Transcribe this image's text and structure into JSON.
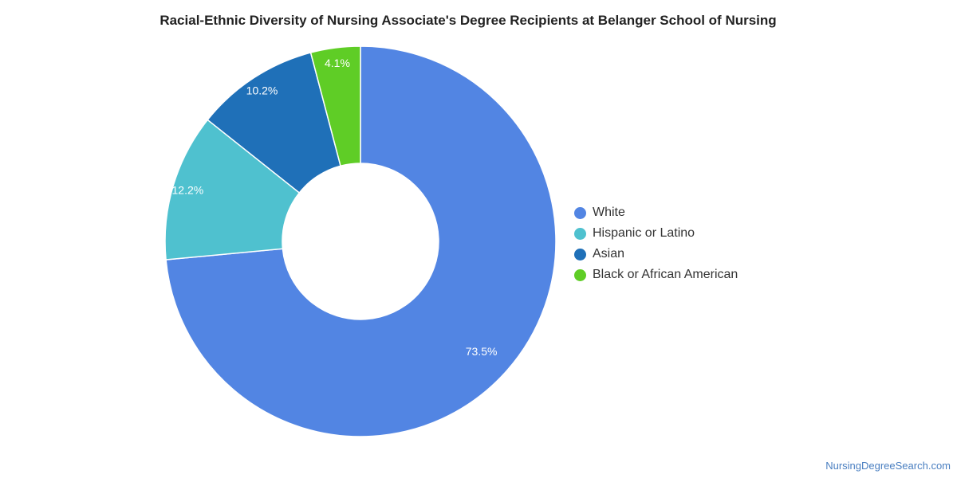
{
  "chart_data": {
    "type": "pie",
    "title": "Racial-Ethnic Diversity of Nursing Associate's Degree Recipients at Belanger School of Nursing",
    "donut": true,
    "legend_position": "right",
    "slices": [
      {
        "label": "White",
        "value": 73.5,
        "display": "73.5%",
        "color": "#5285e3"
      },
      {
        "label": "Hispanic or Latino",
        "value": 12.2,
        "display": "12.2%",
        "color": "#4fc1cf"
      },
      {
        "label": "Asian",
        "value": 10.2,
        "display": "10.2%",
        "color": "#1f70b8"
      },
      {
        "label": "Black or African American",
        "value": 4.1,
        "display": "4.1%",
        "color": "#5fcd26"
      }
    ]
  },
  "source": "NursingDegreeSearch.com"
}
